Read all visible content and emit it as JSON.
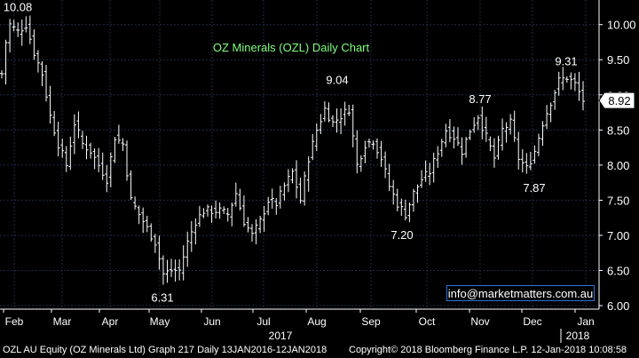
{
  "chart_data": {
    "type": "ohlc",
    "title": "OZ Minerals (OZL) Daily Chart",
    "ylim": [
      5.95,
      10.35
    ],
    "y_ticks": [
      "10.00",
      "9.50",
      "9.00",
      "8.50",
      "8.00",
      "7.50",
      "7.00",
      "6.50",
      "6.00"
    ],
    "y_tick_values": [
      10.0,
      9.5,
      9.0,
      8.5,
      8.0,
      7.5,
      7.0,
      6.5,
      6.0
    ],
    "months": [
      "Feb",
      "Mar",
      "Apr",
      "May",
      "Jun",
      "Jul",
      "Aug",
      "Sep",
      "Oct",
      "Nov",
      "Dec",
      "Jan"
    ],
    "year_labels": [
      "2017",
      "2018"
    ],
    "last_price": "8.92",
    "annotations": [
      {
        "text": "10.08",
        "value": 10.08
      },
      {
        "text": "6.31",
        "value": 6.31
      },
      {
        "text": "9.04",
        "value": 9.04
      },
      {
        "text": "7.20",
        "value": 7.2
      },
      {
        "text": "8.77",
        "value": 8.77
      },
      {
        "text": "7.87",
        "value": 7.87
      },
      {
        "text": "9.31",
        "value": 9.31
      }
    ],
    "anchors": [
      [
        0,
        9.3
      ],
      [
        1,
        9.75
      ],
      [
        2,
        10.0
      ],
      [
        4,
        9.9
      ],
      [
        6,
        10.0
      ],
      [
        8,
        9.6
      ],
      [
        10,
        9.3
      ],
      [
        12,
        8.7
      ],
      [
        14,
        8.3
      ],
      [
        16,
        8.0
      ],
      [
        18,
        8.6
      ],
      [
        20,
        8.3
      ],
      [
        22,
        8.2
      ],
      [
        24,
        8.0
      ],
      [
        26,
        7.8
      ],
      [
        28,
        8.4
      ],
      [
        30,
        8.3
      ],
      [
        32,
        7.5
      ],
      [
        34,
        7.3
      ],
      [
        36,
        7.1
      ],
      [
        38,
        6.9
      ],
      [
        40,
        6.45
      ],
      [
        42,
        6.5
      ],
      [
        44,
        6.5
      ],
      [
        46,
        6.9
      ],
      [
        48,
        7.2
      ],
      [
        50,
        7.35
      ],
      [
        52,
        7.35
      ],
      [
        54,
        7.35
      ],
      [
        56,
        7.3
      ],
      [
        58,
        7.6
      ],
      [
        60,
        7.2
      ],
      [
        62,
        7.0
      ],
      [
        64,
        7.2
      ],
      [
        66,
        7.5
      ],
      [
        68,
        7.45
      ],
      [
        70,
        7.7
      ],
      [
        72,
        7.9
      ],
      [
        74,
        7.5
      ],
      [
        76,
        8.1
      ],
      [
        78,
        8.5
      ],
      [
        80,
        8.8
      ],
      [
        82,
        8.6
      ],
      [
        84,
        8.7
      ],
      [
        86,
        8.8
      ],
      [
        88,
        8.0
      ],
      [
        90,
        8.3
      ],
      [
        92,
        8.35
      ],
      [
        94,
        8.1
      ],
      [
        96,
        7.7
      ],
      [
        98,
        7.45
      ],
      [
        100,
        7.3
      ],
      [
        102,
        7.6
      ],
      [
        104,
        7.8
      ],
      [
        106,
        7.9
      ],
      [
        108,
        8.2
      ],
      [
        110,
        8.5
      ],
      [
        112,
        8.4
      ],
      [
        114,
        8.2
      ],
      [
        116,
        8.5
      ],
      [
        118,
        8.7
      ],
      [
        120,
        8.4
      ],
      [
        122,
        8.1
      ],
      [
        124,
        8.5
      ],
      [
        126,
        8.6
      ],
      [
        128,
        8.1
      ],
      [
        130,
        7.95
      ],
      [
        132,
        8.2
      ],
      [
        134,
        8.6
      ],
      [
        136,
        8.9
      ],
      [
        138,
        9.2
      ],
      [
        140,
        9.25
      ],
      [
        142,
        9.15
      ],
      [
        144,
        8.92
      ]
    ]
  },
  "watermark": "info@marketmatters.com.au",
  "footer": {
    "left": "OZL AU Equity (OZ Minerals Ltd) Graph 217  Daily 13JAN2016-12JAN2018",
    "right": "Copyright© 2018 Bloomberg Finance L.P.   12-Jan-2018 10:08:58"
  },
  "colors": {
    "background": "#000000",
    "bars": "#ffffff",
    "title": "#7fff7f",
    "grid": "#1e2a44",
    "watermark_border": "#2a73d6"
  }
}
